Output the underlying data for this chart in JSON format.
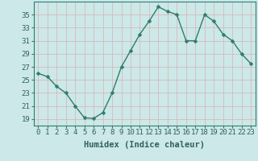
{
  "x": [
    0,
    1,
    2,
    3,
    4,
    5,
    6,
    7,
    8,
    9,
    10,
    11,
    12,
    13,
    14,
    15,
    16,
    17,
    18,
    19,
    20,
    21,
    22,
    23
  ],
  "y": [
    26,
    25.5,
    24,
    23,
    21,
    19.2,
    19.1,
    20,
    23,
    27,
    29.5,
    32,
    34,
    36.2,
    35.5,
    35,
    31,
    31,
    35,
    34,
    32,
    31,
    29,
    27.5
  ],
  "line_color": "#2e7d6e",
  "marker": "D",
  "marker_size": 2.5,
  "bg_color": "#cce8e8",
  "grid_color_major": "#d9b0b0",
  "grid_color_minor": "#d9b0b0",
  "xlabel": "Humidex (Indice chaleur)",
  "xlabel_fontsize": 7.5,
  "tick_fontsize": 6.5,
  "ylim": [
    18,
    37
  ],
  "yticks": [
    19,
    21,
    23,
    25,
    27,
    29,
    31,
    33,
    35
  ],
  "xlim": [
    -0.5,
    23.5
  ],
  "xticks": [
    0,
    1,
    2,
    3,
    4,
    5,
    6,
    7,
    8,
    9,
    10,
    11,
    12,
    13,
    14,
    15,
    16,
    17,
    18,
    19,
    20,
    21,
    22,
    23
  ],
  "line_width": 1.0,
  "spine_color": "#2e7d6e"
}
